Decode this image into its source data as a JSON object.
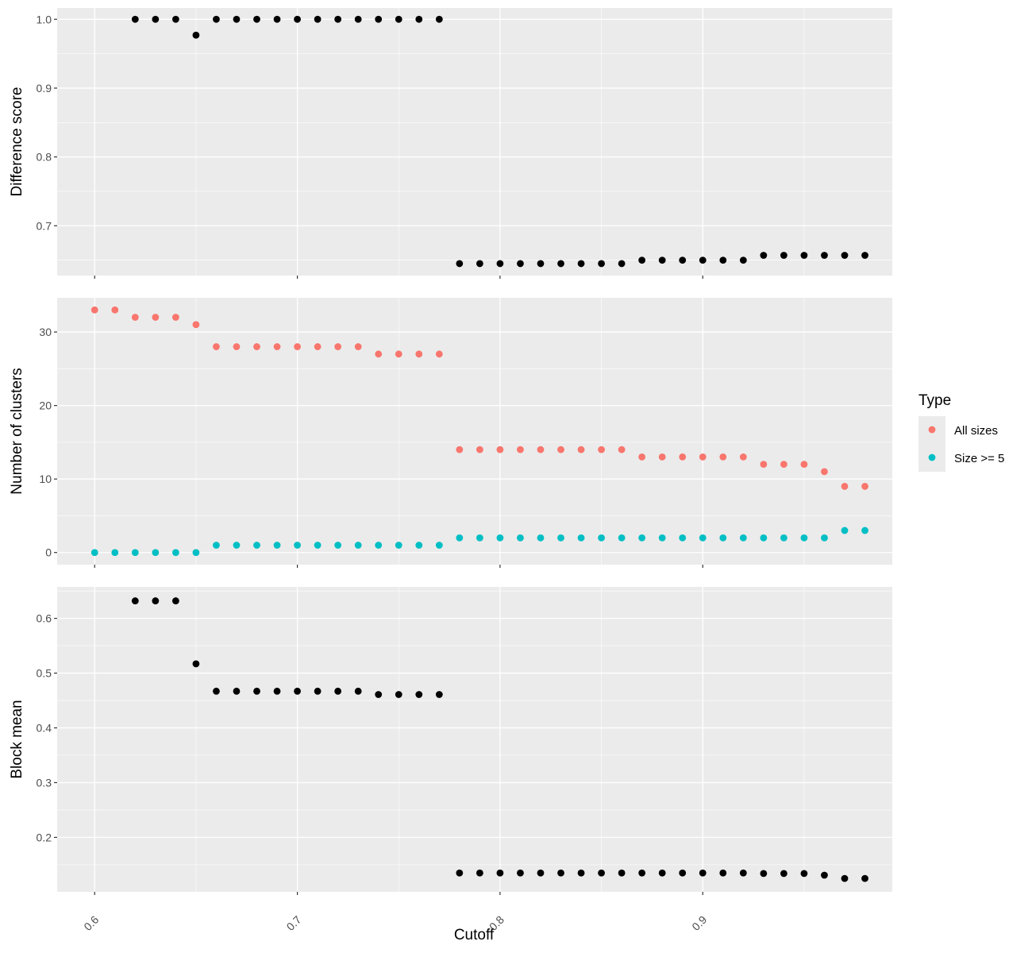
{
  "chart_data": {
    "type": "scatter",
    "xlabel": "Cutoff",
    "x_ticks": [
      0.6,
      0.7,
      0.8,
      0.9
    ],
    "x_tick_labels": [
      "0.6",
      "0.7",
      "0.8",
      "0.9"
    ],
    "xlim": [
      0.5815,
      0.9935
    ],
    "x": [
      0.6,
      0.61,
      0.62,
      0.63,
      0.64,
      0.65,
      0.66,
      0.67,
      0.68,
      0.69,
      0.7,
      0.71,
      0.72,
      0.73,
      0.74,
      0.75,
      0.76,
      0.77,
      0.78,
      0.79,
      0.8,
      0.81,
      0.82,
      0.83,
      0.84,
      0.85,
      0.86,
      0.87,
      0.88,
      0.89,
      0.9,
      0.91,
      0.92,
      0.93,
      0.94,
      0.95,
      0.96,
      0.97,
      0.98
    ],
    "grid": true,
    "legend": {
      "title": "Type",
      "position": "right",
      "items": [
        {
          "label": "All sizes",
          "color": "#F8766D"
        },
        {
          "label": "Size >= 5",
          "color": "#00BFC4"
        }
      ]
    },
    "panels": [
      {
        "ylabel": "Difference score",
        "ylim": [
          0.6276,
          1.0165
        ],
        "y_ticks": [
          0.7,
          0.8,
          0.9,
          1.0
        ],
        "y_tick_labels": [
          "0.7",
          "0.8",
          "0.9",
          "1.0"
        ],
        "series": [
          {
            "color": "#000000",
            "values": [
              null,
              null,
              1.0,
              1.0,
              1.0,
              0.977,
              1.0,
              1.0,
              1.0,
              1.0,
              1.0,
              1.0,
              1.0,
              1.0,
              1.0,
              1.0,
              1.0,
              1.0,
              0.645,
              0.645,
              0.645,
              0.645,
              0.645,
              0.645,
              0.645,
              0.645,
              0.645,
              0.65,
              0.65,
              0.65,
              0.65,
              0.65,
              0.65,
              0.657,
              0.657,
              0.657,
              0.657,
              0.657,
              0.657
            ]
          }
        ]
      },
      {
        "ylabel": "Number of clusters",
        "ylim": [
          -1.65,
          34.65
        ],
        "y_ticks": [
          0,
          10,
          20,
          30
        ],
        "y_tick_labels": [
          "0",
          "10",
          "20",
          "30"
        ],
        "series": [
          {
            "name": "All sizes",
            "color": "#F8766D",
            "values": [
              33,
              33,
              32,
              32,
              32,
              31,
              28,
              28,
              28,
              28,
              28,
              28,
              28,
              28,
              27,
              27,
              27,
              27,
              14,
              14,
              14,
              14,
              14,
              14,
              14,
              14,
              14,
              13,
              13,
              13,
              13,
              13,
              13,
              12,
              12,
              12,
              11,
              9,
              9
            ]
          },
          {
            "name": "Size >= 5",
            "color": "#00BFC4",
            "values": [
              0,
              0,
              0,
              0,
              0,
              0,
              1,
              1,
              1,
              1,
              1,
              1,
              1,
              1,
              1,
              1,
              1,
              1,
              2,
              2,
              2,
              2,
              2,
              2,
              2,
              2,
              2,
              2,
              2,
              2,
              2,
              2,
              2,
              2,
              2,
              2,
              2,
              3,
              3
            ]
          }
        ]
      },
      {
        "ylabel": "Block mean",
        "ylim": [
          0.1005,
          0.6575
        ],
        "y_ticks": [
          0.2,
          0.3,
          0.4,
          0.5,
          0.6
        ],
        "y_tick_labels": [
          "0.2",
          "0.3",
          "0.4",
          "0.5",
          "0.6"
        ],
        "series": [
          {
            "color": "#000000",
            "values": [
              null,
              null,
              0.632,
              0.632,
              0.632,
              0.517,
              0.467,
              0.467,
              0.467,
              0.467,
              0.467,
              0.467,
              0.467,
              0.467,
              0.461,
              0.461,
              0.461,
              0.461,
              0.135,
              0.135,
              0.135,
              0.135,
              0.135,
              0.135,
              0.135,
              0.135,
              0.135,
              0.135,
              0.135,
              0.135,
              0.135,
              0.135,
              0.135,
              0.134,
              0.134,
              0.134,
              0.131,
              0.125,
              0.125
            ]
          }
        ]
      }
    ]
  }
}
